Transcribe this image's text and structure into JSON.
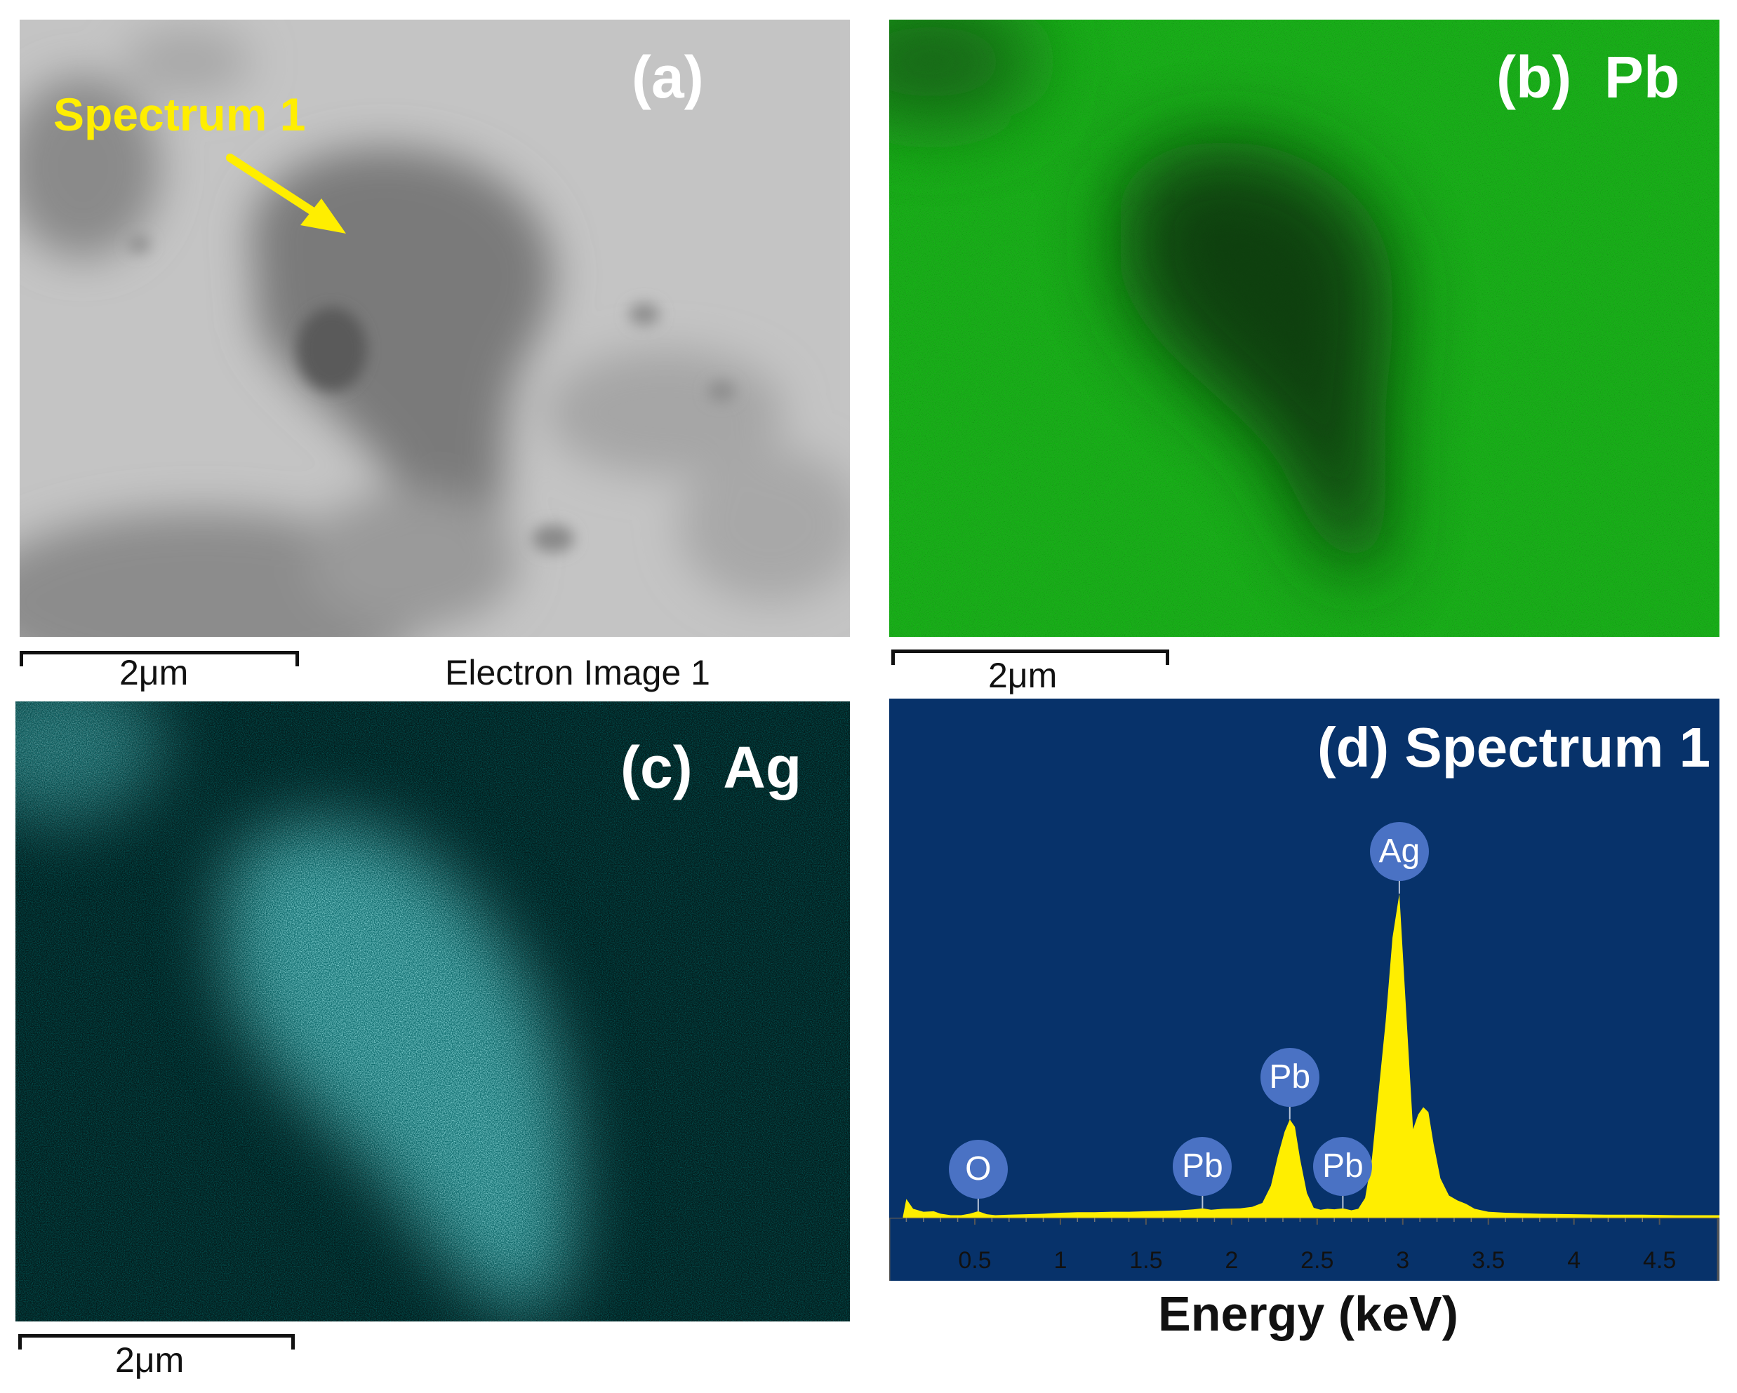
{
  "panel_a": {
    "label": "(a)",
    "annotation": "Spectrum 1",
    "scale_label": "2μm",
    "caption": "Electron Image 1"
  },
  "panel_b": {
    "label": "(b)  Pb",
    "scale_label": "2μm"
  },
  "panel_c": {
    "label": "(c)  Ag",
    "scale_label": "2μm"
  },
  "panel_d": {
    "label": "(d) Spectrum 1",
    "background_color": "#07326a",
    "fill_color": "#ffee00"
  },
  "chart_data": {
    "type": "area",
    "title": "(d) Spectrum 1",
    "xlabel": "Energy (keV)",
    "ylabel": "",
    "xlim": [
      0.0,
      4.85
    ],
    "x_ticks": [
      "0.5",
      "1",
      "1.5",
      "2",
      "2.5",
      "3",
      "3.5",
      "4",
      "4.5"
    ],
    "grid": false,
    "peak_labels": [
      {
        "text": "O",
        "x": 0.52
      },
      {
        "text": "Pb",
        "x": 1.83
      },
      {
        "text": "Pb",
        "x": 2.34
      },
      {
        "text": "Pb",
        "x": 2.65
      },
      {
        "text": "Ag",
        "x": 2.98
      }
    ],
    "series": [
      {
        "x": [
          0.08,
          0.1,
          0.14,
          0.2,
          0.26,
          0.3,
          0.36,
          0.42,
          0.47,
          0.52,
          0.57,
          0.62,
          0.7,
          0.8,
          0.9,
          1.0,
          1.1,
          1.2,
          1.3,
          1.4,
          1.5,
          1.6,
          1.7,
          1.78,
          1.83,
          1.88,
          1.95,
          2.05,
          2.12,
          2.18,
          2.23,
          2.27,
          2.31,
          2.34,
          2.37,
          2.4,
          2.44,
          2.48,
          2.52,
          2.56,
          2.6,
          2.65,
          2.7,
          2.74,
          2.78,
          2.82,
          2.86,
          2.9,
          2.94,
          2.98,
          3.02,
          3.06,
          3.09,
          3.12,
          3.15,
          3.18,
          3.22,
          3.27,
          3.32,
          3.37,
          3.42,
          3.5,
          3.6,
          3.7,
          3.8,
          4.0,
          4.2,
          4.4,
          4.6,
          4.85
        ],
        "y": [
          2,
          38,
          18,
          12,
          13,
          8,
          5,
          5,
          8,
          13,
          7,
          5,
          6,
          7,
          8,
          10,
          11,
          11,
          12,
          12,
          13,
          14,
          15,
          17,
          19,
          16,
          18,
          19,
          22,
          30,
          65,
          125,
          175,
          200,
          185,
          120,
          50,
          20,
          16,
          18,
          17,
          19,
          15,
          18,
          40,
          120,
          260,
          400,
          570,
          660,
          420,
          180,
          210,
          225,
          215,
          150,
          80,
          45,
          35,
          28,
          18,
          12,
          10,
          9,
          8,
          7,
          6,
          6,
          5,
          5
        ]
      }
    ]
  }
}
